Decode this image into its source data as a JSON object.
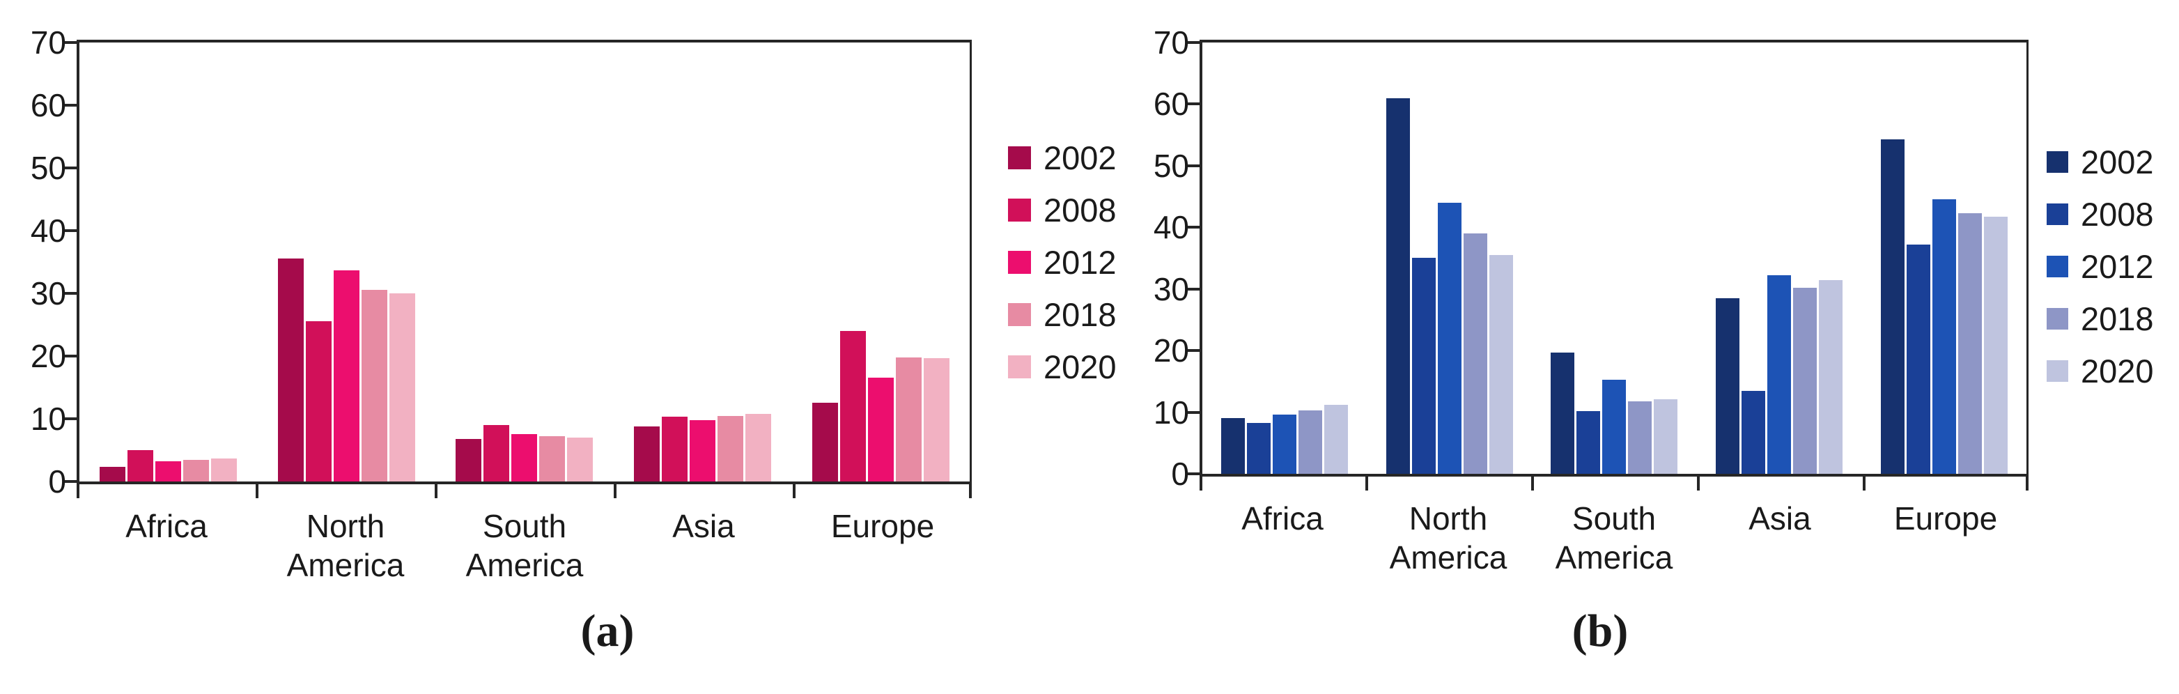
{
  "figure": {
    "background": "#ffffff",
    "axis_color": "#262626",
    "text_color": "#1a1a1a"
  },
  "chart_data": [
    {
      "id": "a",
      "type": "bar",
      "caption": "(a)",
      "title": "",
      "xlabel": "",
      "ylabel": "",
      "ylim": [
        0,
        70
      ],
      "yticks": [
        0,
        10,
        20,
        30,
        40,
        50,
        60,
        70
      ],
      "grid": false,
      "legend_position": "right",
      "categories": [
        "Africa",
        "North America",
        "South America",
        "Asia",
        "Europe"
      ],
      "category_lines": [
        [
          "Africa"
        ],
        [
          "North",
          "America"
        ],
        [
          "South",
          "America"
        ],
        [
          "Asia"
        ],
        [
          "Europe"
        ]
      ],
      "series": [
        {
          "name": "2002",
          "color": "#a50b4b",
          "values": [
            2.3,
            35.5,
            6.8,
            8.8,
            12.5
          ]
        },
        {
          "name": "2008",
          "color": "#d11059",
          "values": [
            5.0,
            25.5,
            9.0,
            10.3,
            24.0
          ]
        },
        {
          "name": "2012",
          "color": "#ec0e6e",
          "values": [
            3.2,
            33.7,
            7.6,
            9.8,
            16.5
          ]
        },
        {
          "name": "2018",
          "color": "#e78ba3",
          "values": [
            3.4,
            30.6,
            7.2,
            10.4,
            19.8
          ]
        },
        {
          "name": "2020",
          "color": "#f2b1c2",
          "values": [
            3.7,
            30.0,
            7.0,
            10.8,
            19.7
          ]
        }
      ]
    },
    {
      "id": "b",
      "type": "bar",
      "caption": "(b)",
      "title": "",
      "xlabel": "",
      "ylabel": "",
      "ylim": [
        0,
        70
      ],
      "yticks": [
        0,
        10,
        20,
        30,
        40,
        50,
        60,
        70
      ],
      "grid": false,
      "legend_position": "right",
      "categories": [
        "Africa",
        "North America",
        "South America",
        "Asia",
        "Europe"
      ],
      "category_lines": [
        [
          "Africa"
        ],
        [
          "North",
          "America"
        ],
        [
          "South",
          "America"
        ],
        [
          "Asia"
        ],
        [
          "Europe"
        ]
      ],
      "series": [
        {
          "name": "2002",
          "color": "#16316e",
          "values": [
            9.0,
            61.0,
            19.7,
            28.5,
            54.3
          ]
        },
        {
          "name": "2008",
          "color": "#1a4097",
          "values": [
            8.3,
            35.0,
            10.2,
            13.5,
            37.2
          ]
        },
        {
          "name": "2012",
          "color": "#1d53b5",
          "values": [
            9.6,
            44.0,
            15.3,
            32.2,
            44.5
          ]
        },
        {
          "name": "2018",
          "color": "#8e96c6",
          "values": [
            10.3,
            39.0,
            11.8,
            30.2,
            42.3
          ]
        },
        {
          "name": "2020",
          "color": "#bfc4df",
          "values": [
            11.2,
            35.5,
            12.1,
            31.4,
            41.7
          ]
        }
      ]
    }
  ]
}
